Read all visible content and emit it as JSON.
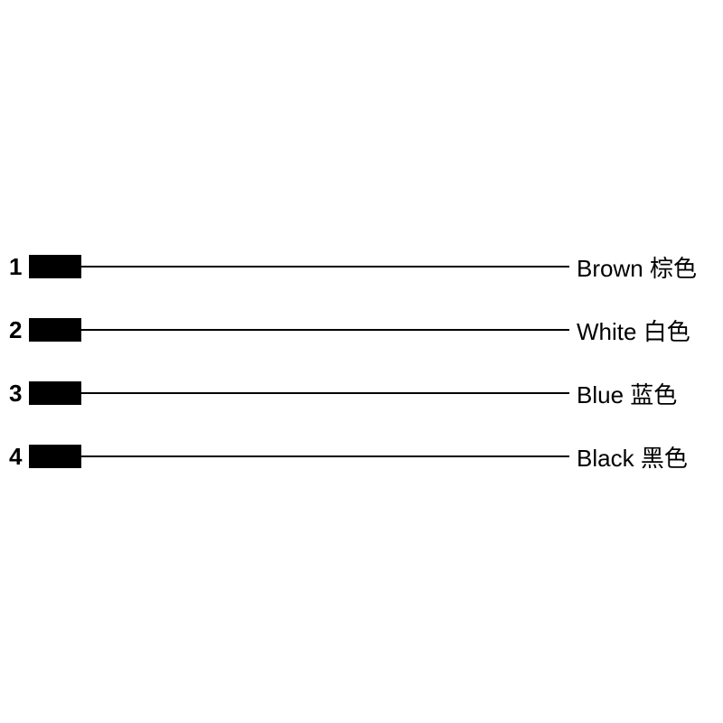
{
  "diagram": {
    "type": "wiring-pinout",
    "background_color": "#ffffff",
    "pin_block_color": "#000000",
    "wire_color": "#000000",
    "text_color": "#000000",
    "number_fontsize": 26,
    "label_fontsize": 26,
    "number_fontweight": 700,
    "pin_block_width": 58,
    "pin_block_height": 26,
    "wire_thickness": 2,
    "row_spacing": 70,
    "rows": [
      {
        "number": "1",
        "label_en": "Brown",
        "label_cn": "棕色"
      },
      {
        "number": "2",
        "label_en": "White",
        "label_cn": "白色"
      },
      {
        "number": "3",
        "label_en": "Blue",
        "label_cn": "蓝色"
      },
      {
        "number": "4",
        "label_en": "Black",
        "label_cn": "黑色"
      }
    ]
  }
}
